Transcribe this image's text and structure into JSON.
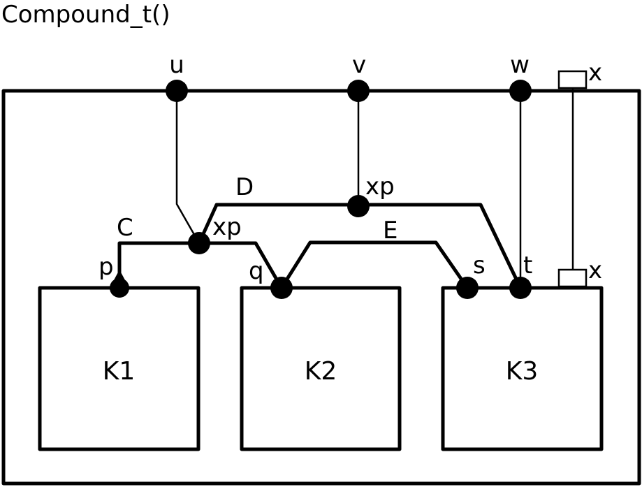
{
  "title": "Compound_t()",
  "outer_ports": {
    "u": "u",
    "v": "v",
    "w": "w",
    "x": "x"
  },
  "components": [
    {
      "label": "K1"
    },
    {
      "label": "K2"
    },
    {
      "label": "K3"
    }
  ],
  "inner_ports": {
    "p": "p",
    "q": "q",
    "s": "s",
    "t": "t",
    "x": "x"
  },
  "connections": {
    "C": "C",
    "D": "D",
    "E": "E"
  },
  "junctions": {
    "xp_left": "xp",
    "xp_top": "xp"
  }
}
